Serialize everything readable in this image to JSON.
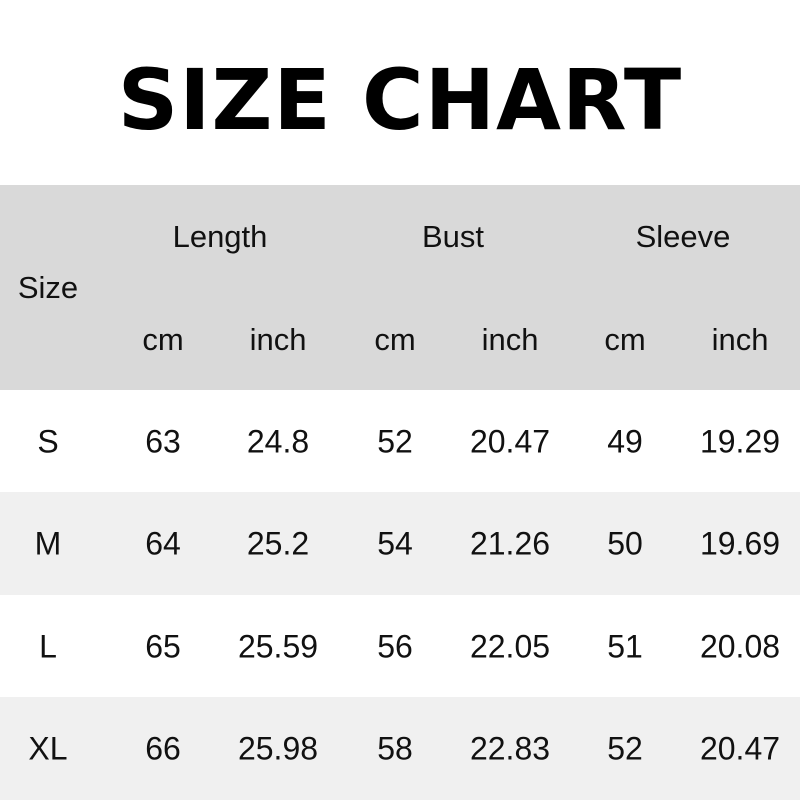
{
  "title": "SIZE CHART",
  "header": {
    "size": "Size",
    "groups": [
      "Length",
      "Bust",
      "Sleeve"
    ],
    "units": [
      "cm",
      "inch",
      "cm",
      "inch",
      "cm",
      "inch"
    ]
  },
  "rows": [
    {
      "size": "S",
      "values": [
        "63",
        "24.8",
        "52",
        "20.47",
        "49",
        "19.29"
      ]
    },
    {
      "size": "M",
      "values": [
        "64",
        "25.2",
        "54",
        "21.26",
        "50",
        "19.69"
      ]
    },
    {
      "size": "L",
      "values": [
        "65",
        "25.59",
        "56",
        "22.05",
        "51",
        "20.08"
      ]
    },
    {
      "size": "XL",
      "values": [
        "66",
        "25.98",
        "58",
        "22.83",
        "52",
        "20.47"
      ]
    }
  ],
  "colors": {
    "header_bg": "#d9d9d9",
    "stripe_bg": "#f0f0f0",
    "row_bg": "#ffffff"
  }
}
